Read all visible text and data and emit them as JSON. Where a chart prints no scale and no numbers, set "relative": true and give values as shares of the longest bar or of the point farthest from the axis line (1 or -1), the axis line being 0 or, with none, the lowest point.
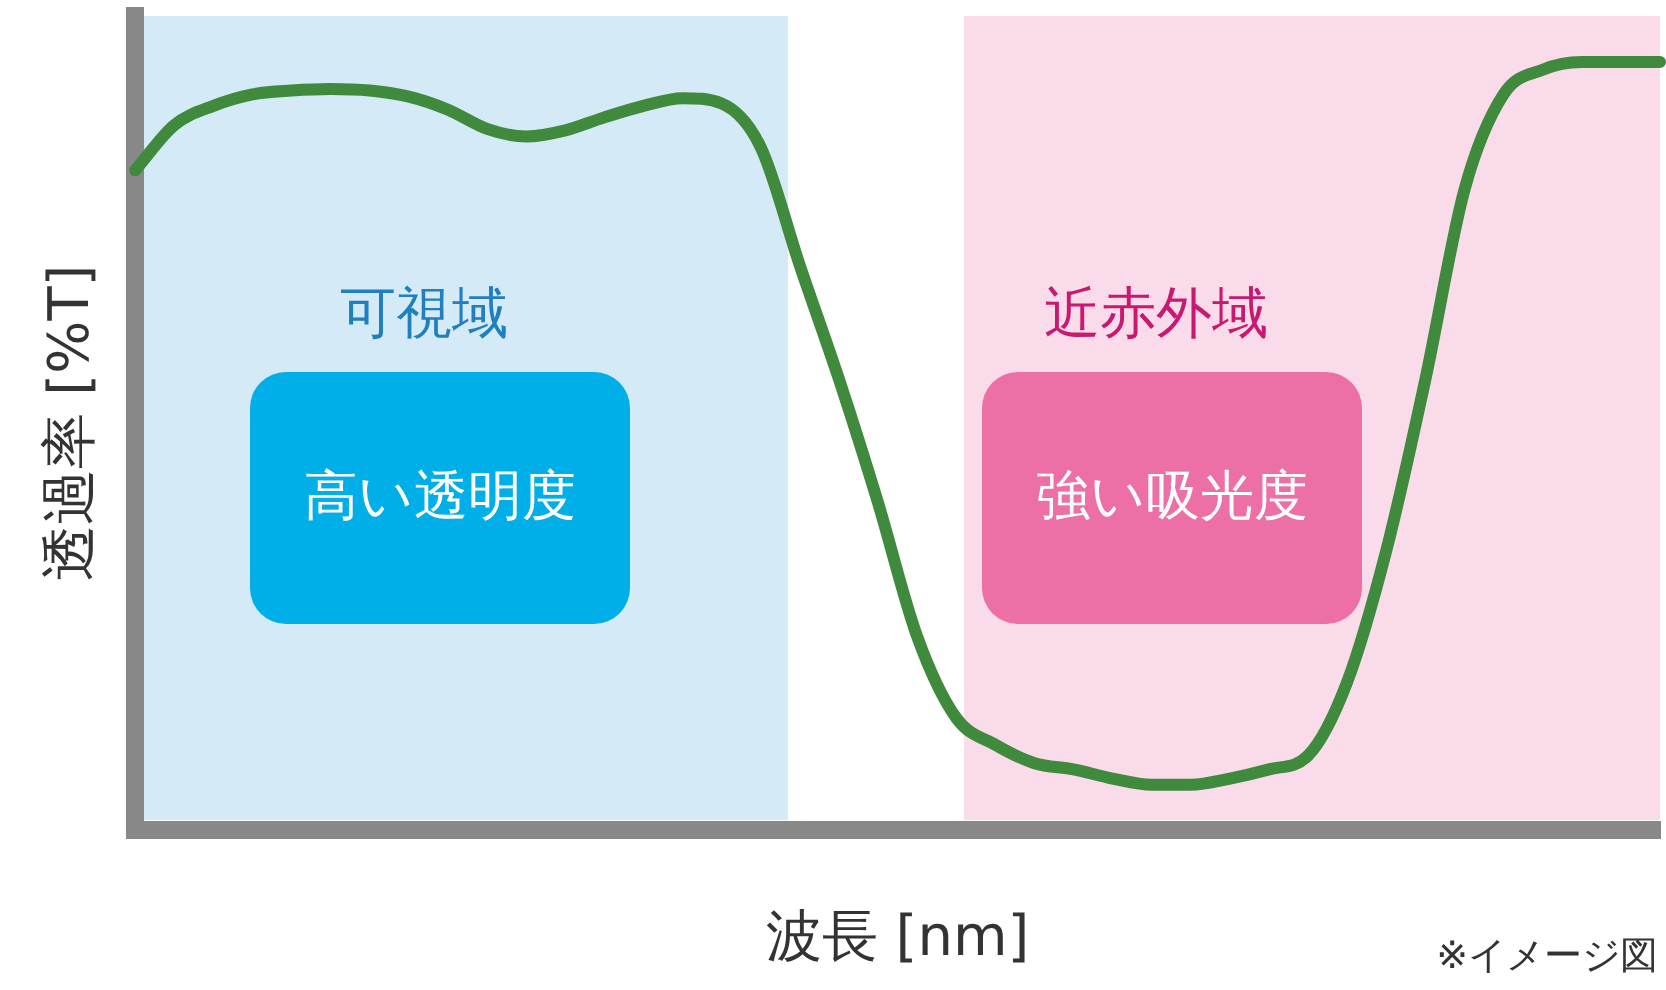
{
  "chart_data": {
    "type": "line",
    "relative": true,
    "xlabel": "波長 [nm]",
    "ylabel": "透過率 [%T]",
    "categories": [
      null,
      null,
      null,
      null,
      null,
      null,
      null,
      null,
      null,
      null,
      null,
      null,
      null,
      null,
      null,
      null,
      null,
      null,
      null,
      null,
      null,
      null,
      null,
      null,
      null,
      null,
      null,
      null,
      null,
      null,
      null,
      null,
      null,
      null,
      null,
      null,
      null,
      null,
      null,
      null
    ],
    "series": [
      {
        "color": "#3f8a3c",
        "values": [
          0.859,
          0.918,
          0.943,
          0.958,
          0.963,
          0.965,
          0.963,
          0.955,
          0.938,
          0.913,
          0.903,
          0.911,
          0.928,
          0.943,
          0.953,
          0.946,
          0.889,
          0.735,
          0.587,
          0.426,
          0.252,
          0.146,
          0.111,
          0.087,
          0.079,
          0.067,
          0.059,
          0.059,
          0.067,
          0.079,
          0.097,
          0.193,
          0.364,
          0.587,
          0.834,
          0.958,
          0.99,
          1,
          1,
          1
        ]
      }
    ],
    "annotations": [
      "可視域",
      "高い透明度",
      "近赤外域",
      "強い吸光度",
      "※イメージ図"
    ],
    "grid": false,
    "legend": false,
    "marker": "none",
    "line_style": "solid"
  }
}
